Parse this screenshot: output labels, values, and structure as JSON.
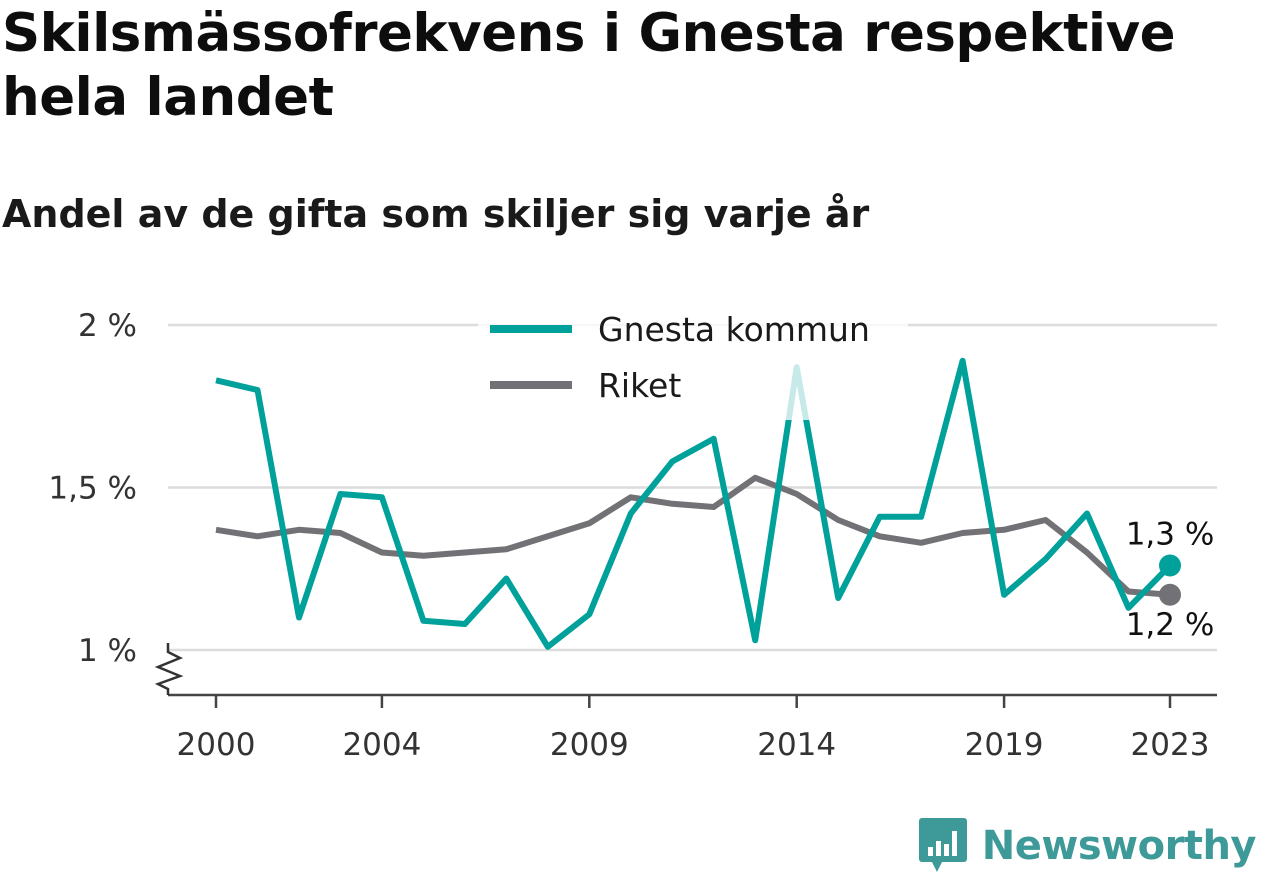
{
  "chart_data": {
    "type": "line",
    "title": "Skilsmässofrekvens i Gnesta respektive hela landet",
    "subtitle": "Andel av de gifta som skiljer sig varje år",
    "x": [
      2000,
      2001,
      2002,
      2003,
      2004,
      2005,
      2006,
      2007,
      2008,
      2009,
      2010,
      2011,
      2012,
      2013,
      2014,
      2015,
      2016,
      2017,
      2018,
      2019,
      2020,
      2021,
      2022,
      2023
    ],
    "x_tick_labels": [
      "2000",
      "2004",
      "2009",
      "2014",
      "2019",
      "2023"
    ],
    "x_tick_values": [
      2000,
      2004,
      2009,
      2014,
      2019,
      2023
    ],
    "y_tick_labels": [
      "2 %",
      "1,5 %",
      "1 %"
    ],
    "y_tick_values": [
      2.0,
      1.5,
      1.0
    ],
    "ylim": [
      0.87,
      2.0
    ],
    "y_axis_break": true,
    "grid": true,
    "legend_position": "top-center",
    "series": [
      {
        "name": "Gnesta kommun",
        "color": "#00a19a",
        "values": [
          1.83,
          1.8,
          1.1,
          1.48,
          1.47,
          1.09,
          1.08,
          1.22,
          1.01,
          1.11,
          1.42,
          1.58,
          1.65,
          1.03,
          1.87,
          1.16,
          1.41,
          1.41,
          1.89,
          1.17,
          1.28,
          1.42,
          1.13,
          1.26
        ],
        "end_label": "1,3 %"
      },
      {
        "name": "Riket",
        "color": "#727176",
        "values": [
          1.37,
          1.35,
          1.37,
          1.36,
          1.3,
          1.29,
          1.3,
          1.31,
          1.35,
          1.39,
          1.47,
          1.45,
          1.44,
          1.53,
          1.48,
          1.4,
          1.35,
          1.33,
          1.36,
          1.37,
          1.4,
          1.3,
          1.18,
          1.17
        ],
        "end_label": "1,2 %"
      }
    ]
  },
  "brand": {
    "name": "Newsworthy",
    "color": "#3d9a98"
  }
}
